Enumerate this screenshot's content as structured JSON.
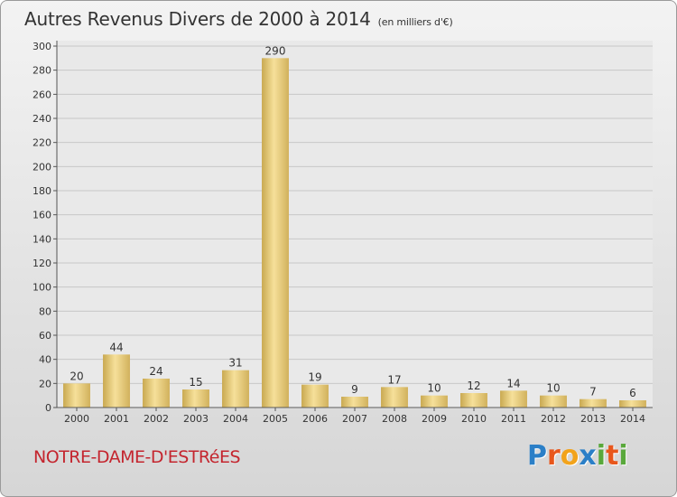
{
  "header": {
    "title": "Autres Revenus Divers de 2000 à 2014",
    "unit": "(en milliers d'€)"
  },
  "location": "NOTRE-DAME-D'ESTRéES",
  "logo": {
    "text": "Proxiti",
    "letters": [
      {
        "ch": "P",
        "color": "#2b7fc7"
      },
      {
        "ch": "r",
        "color": "#e8571c"
      },
      {
        "ch": "o",
        "color": "#f2a31b"
      },
      {
        "ch": "x",
        "color": "#2b7fc7"
      },
      {
        "ch": "i",
        "color": "#59a83b"
      },
      {
        "ch": "t",
        "color": "#e8571c"
      },
      {
        "ch": "i",
        "color": "#59a83b"
      }
    ]
  },
  "chart_data": {
    "type": "bar",
    "categories": [
      "2000",
      "2001",
      "2002",
      "2003",
      "2004",
      "2005",
      "2006",
      "2007",
      "2008",
      "2009",
      "2010",
      "2011",
      "2012",
      "2013",
      "2014"
    ],
    "values": [
      20,
      44,
      24,
      15,
      31,
      290,
      19,
      9,
      17,
      10,
      12,
      14,
      10,
      7,
      6
    ],
    "ylim": [
      0,
      300
    ],
    "yticks": [
      0,
      20,
      40,
      60,
      80,
      100,
      120,
      140,
      160,
      180,
      200,
      220,
      240,
      260,
      280,
      300
    ],
    "grid": true,
    "bar_color": "#e6c97a"
  }
}
